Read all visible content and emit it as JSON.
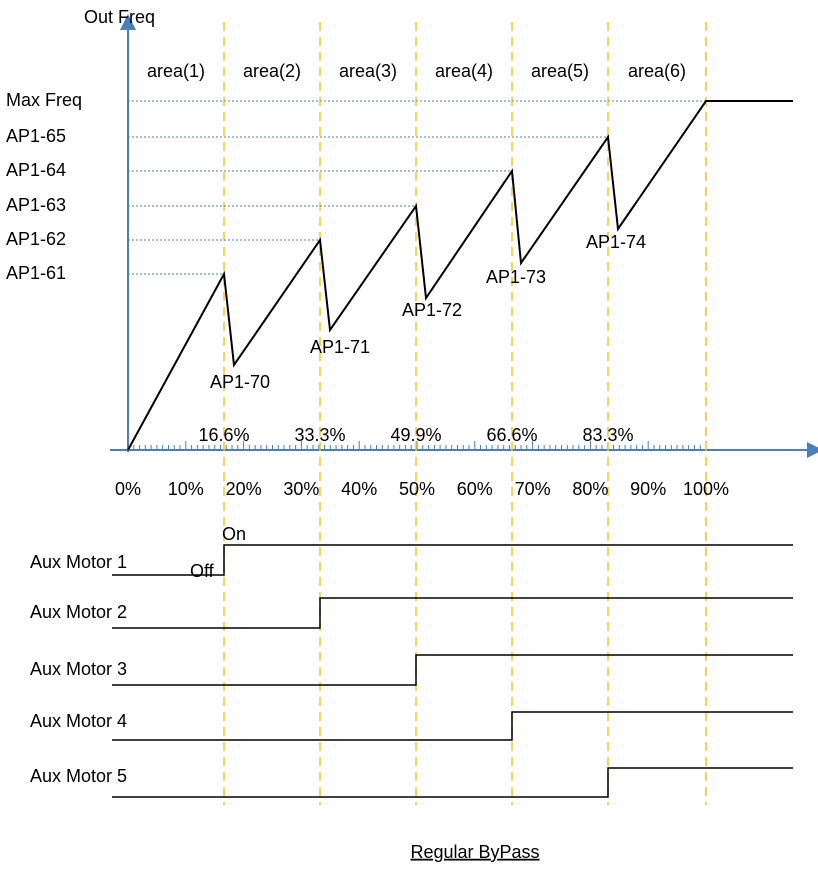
{
  "axis": {
    "y_label": "Out Freq"
  },
  "y_levels": [
    "Max Freq",
    "AP1-65",
    "AP1-64",
    "AP1-63",
    "AP1-62",
    "AP1-61"
  ],
  "areas": [
    "area(1)",
    "area(2)",
    "area(3)",
    "area(4)",
    "area(5)",
    "area(6)"
  ],
  "breakpoints": [
    "16.6%",
    "33.3%",
    "49.9%",
    "66.6%",
    "83.3%"
  ],
  "x_ticks": [
    "0%",
    "10%",
    "20%",
    "30%",
    "40%",
    "50%",
    "60%",
    "70%",
    "80%",
    "90%",
    "100%"
  ],
  "valleys": [
    "AP1-70",
    "AP1-71",
    "AP1-72",
    "AP1-73",
    "AP1-74"
  ],
  "motors": [
    "Aux Motor 1",
    "Aux Motor 2",
    "Aux Motor 3",
    "Aux Motor 4",
    "Aux Motor 5"
  ],
  "states": {
    "on": "On",
    "off": "Off"
  },
  "caption": "Regular ByPass"
}
